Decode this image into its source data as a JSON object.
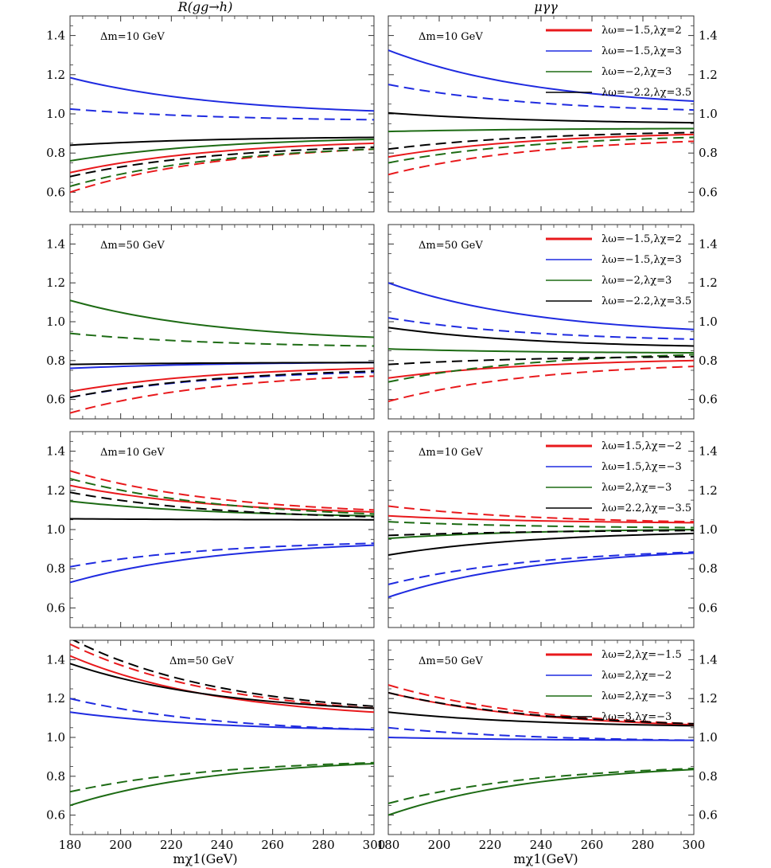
{
  "figure": {
    "column_titles": [
      "R(gg→h)",
      "μγγ"
    ],
    "x_title": "mχ1(GeV)",
    "x_ticks": [
      "180",
      "200",
      "220",
      "240",
      "260",
      "280",
      "300"
    ],
    "y_ticks": [
      "0.6",
      "0.8",
      "1.0",
      "1.2",
      "1.4"
    ],
    "colors": {
      "red": "#e8191c",
      "blue": "#1f2be0",
      "green": "#1d6b14",
      "black": "#000000"
    }
  },
  "chart_data": [
    {
      "type": "line",
      "row": 0,
      "col": 0,
      "quantity": "R(gg→h)",
      "annotation": "Δm=10 GeV",
      "xlim": [
        180,
        300
      ],
      "ylim": [
        0.5,
        1.5
      ],
      "series": [
        {
          "name": "λω=-1.5,λχ=2",
          "color": "red",
          "solid": {
            "x": [
              180,
              300
            ],
            "y": [
              0.7,
              0.85
            ]
          },
          "dashed": {
            "x": [
              180,
              300
            ],
            "y": [
              0.6,
              0.82
            ]
          }
        },
        {
          "name": "λω=-1.5,λχ=3",
          "color": "blue",
          "solid": {
            "x": [
              180,
              300
            ],
            "y": [
              1.185,
              1.015
            ]
          },
          "dashed": {
            "x": [
              180,
              300
            ],
            "y": [
              1.025,
              0.97
            ]
          }
        },
        {
          "name": "λω=-2,λχ=3",
          "color": "green",
          "solid": {
            "x": [
              180,
              300
            ],
            "y": [
              0.76,
              0.87
            ]
          },
          "dashed": {
            "x": [
              180,
              300
            ],
            "y": [
              0.63,
              0.82
            ]
          }
        },
        {
          "name": "λω=-2.2,λχ=3.5",
          "color": "black",
          "solid": {
            "x": [
              180,
              300
            ],
            "y": [
              0.84,
              0.88
            ]
          },
          "dashed": {
            "x": [
              180,
              300
            ],
            "y": [
              0.68,
              0.83
            ]
          }
        }
      ]
    },
    {
      "type": "line",
      "row": 0,
      "col": 1,
      "quantity": "μγγ",
      "annotation": "Δm=10 GeV",
      "xlim": [
        180,
        300
      ],
      "ylim": [
        0.5,
        1.5
      ],
      "legend": [
        "λω=−1.5,λχ=2",
        "λω=−1.5,λχ=3",
        "λω=−2,λχ=3",
        "λω=−2.2,λχ=3.5"
      ],
      "series": [
        {
          "name": "λω=-1.5,λχ=2",
          "color": "red",
          "solid": {
            "x": [
              180,
              300
            ],
            "y": [
              0.78,
              0.895
            ]
          },
          "dashed": {
            "x": [
              180,
              300
            ],
            "y": [
              0.69,
              0.86
            ]
          }
        },
        {
          "name": "λω=-1.5,λχ=3",
          "color": "blue",
          "solid": {
            "x": [
              180,
              300
            ],
            "y": [
              1.325,
              1.065
            ]
          },
          "dashed": {
            "x": [
              180,
              300
            ],
            "y": [
              1.15,
              1.02
            ]
          }
        },
        {
          "name": "λω=-2,λχ=3",
          "color": "green",
          "solid": {
            "x": [
              180,
              300
            ],
            "y": [
              0.91,
              0.925
            ]
          },
          "dashed": {
            "x": [
              180,
              300
            ],
            "y": [
              0.75,
              0.88
            ]
          }
        },
        {
          "name": "λω=-2.2,λχ=3.5",
          "color": "black",
          "solid": {
            "x": [
              180,
              300
            ],
            "y": [
              1.005,
              0.955
            ]
          },
          "dashed": {
            "x": [
              180,
              300
            ],
            "y": [
              0.82,
              0.905
            ]
          }
        }
      ]
    },
    {
      "type": "line",
      "row": 1,
      "col": 0,
      "quantity": "R(gg→h)",
      "annotation": "Δm=50 GeV",
      "xlim": [
        180,
        300
      ],
      "ylim": [
        0.5,
        1.5
      ],
      "series": [
        {
          "name": "λω=-1.5,λχ=2",
          "color": "red",
          "solid": {
            "x": [
              180,
              300
            ],
            "y": [
              0.64,
              0.76
            ]
          },
          "dashed": {
            "x": [
              180,
              300
            ],
            "y": [
              0.53,
              0.72
            ]
          }
        },
        {
          "name": "λω=-1.5,λχ=3",
          "color": "blue",
          "solid": {
            "x": [
              180,
              300
            ],
            "y": [
              0.76,
              0.79
            ]
          },
          "dashed": {
            "x": [
              180,
              300
            ],
            "y": [
              0.61,
              0.74
            ]
          }
        },
        {
          "name": "λω=-2,λχ=3",
          "color": "green",
          "solid": {
            "x": [
              180,
              300
            ],
            "y": [
              1.11,
              0.92
            ]
          },
          "dashed": {
            "x": [
              180,
              300
            ],
            "y": [
              0.94,
              0.875
            ]
          }
        },
        {
          "name": "λω=-2.2,λχ=3.5",
          "color": "black",
          "solid": {
            "x": [
              180,
              300
            ],
            "y": [
              0.78,
              0.79
            ]
          },
          "dashed": {
            "x": [
              180,
              300
            ],
            "y": [
              0.61,
              0.745
            ]
          }
        }
      ]
    },
    {
      "type": "line",
      "row": 1,
      "col": 1,
      "quantity": "μγγ",
      "annotation": "Δm=50 GeV",
      "xlim": [
        180,
        300
      ],
      "ylim": [
        0.5,
        1.5
      ],
      "legend": [
        "λω=−1.5,λχ=2",
        "λω=−1.5,λχ=3",
        "λω=−2,λχ=3",
        "λω=−2.2,λχ=3.5"
      ],
      "series": [
        {
          "name": "λω=-1.5,λχ=2",
          "color": "red",
          "solid": {
            "x": [
              180,
              300
            ],
            "y": [
              0.71,
              0.8
            ]
          },
          "dashed": {
            "x": [
              180,
              300
            ],
            "y": [
              0.59,
              0.77
            ]
          }
        },
        {
          "name": "λω=-1.5,λχ=3",
          "color": "blue",
          "solid": {
            "x": [
              180,
              300
            ],
            "y": [
              1.2,
              0.96
            ]
          },
          "dashed": {
            "x": [
              180,
              300
            ],
            "y": [
              1.02,
              0.91
            ]
          }
        },
        {
          "name": "λω=-2,λχ=3",
          "color": "green",
          "solid": {
            "x": [
              180,
              300
            ],
            "y": [
              0.86,
              0.84
            ]
          },
          "dashed": {
            "x": [
              180,
              300
            ],
            "y": [
              0.69,
              0.83
            ]
          }
        },
        {
          "name": "λω=-2.2,λχ=3.5",
          "color": "black",
          "solid": {
            "x": [
              180,
              300
            ],
            "y": [
              0.97,
              0.875
            ]
          },
          "dashed": {
            "x": [
              180,
              300
            ],
            "y": [
              0.78,
              0.82
            ]
          }
        }
      ]
    },
    {
      "type": "line",
      "row": 2,
      "col": 0,
      "quantity": "R(gg→h)",
      "annotation": "Δm=10 GeV",
      "xlim": [
        180,
        300
      ],
      "ylim": [
        0.5,
        1.5
      ],
      "series": [
        {
          "name": "λω=1.5,λχ=-2",
          "color": "red",
          "solid": {
            "x": [
              180,
              300
            ],
            "y": [
              1.225,
              1.09
            ]
          },
          "dashed": {
            "x": [
              180,
              300
            ],
            "y": [
              1.3,
              1.1
            ]
          }
        },
        {
          "name": "λω=1.5,λχ=-3",
          "color": "blue",
          "solid": {
            "x": [
              180,
              300
            ],
            "y": [
              0.73,
              0.92
            ]
          },
          "dashed": {
            "x": [
              180,
              300
            ],
            "y": [
              0.81,
              0.93
            ]
          }
        },
        {
          "name": "λω=2,λχ=-3",
          "color": "green",
          "solid": {
            "x": [
              180,
              300
            ],
            "y": [
              1.145,
              1.07
            ]
          },
          "dashed": {
            "x": [
              180,
              300
            ],
            "y": [
              1.26,
              1.08
            ]
          }
        },
        {
          "name": "λω=2.2,λχ=-3.5",
          "color": "black",
          "solid": {
            "x": [
              180,
              300
            ],
            "y": [
              1.055,
              1.05
            ]
          },
          "dashed": {
            "x": [
              180,
              300
            ],
            "y": [
              1.19,
              1.065
            ]
          }
        }
      ]
    },
    {
      "type": "line",
      "row": 2,
      "col": 1,
      "quantity": "μγγ",
      "annotation": "Δm=10 GeV",
      "xlim": [
        180,
        300
      ],
      "ylim": [
        0.5,
        1.5
      ],
      "legend": [
        "λω=1.5,λχ=−2",
        "λω=1.5,λχ=−3",
        "λω=2,λχ=−3",
        "λω=2.2,λχ=−3.5"
      ],
      "series": [
        {
          "name": "λω=1.5,λχ=-2",
          "color": "red",
          "solid": {
            "x": [
              180,
              300
            ],
            "y": [
              1.07,
              1.035
            ]
          },
          "dashed": {
            "x": [
              180,
              300
            ],
            "y": [
              1.12,
              1.04
            ]
          }
        },
        {
          "name": "λω=1.5,λχ=-3",
          "color": "blue",
          "solid": {
            "x": [
              180,
              300
            ],
            "y": [
              0.655,
              0.88
            ]
          },
          "dashed": {
            "x": [
              180,
              300
            ],
            "y": [
              0.72,
              0.885
            ]
          }
        },
        {
          "name": "λω=2,λχ=-3",
          "color": "green",
          "solid": {
            "x": [
              180,
              300
            ],
            "y": [
              0.955,
              1.0
            ]
          },
          "dashed": {
            "x": [
              180,
              300
            ],
            "y": [
              1.04,
              1.01
            ]
          }
        },
        {
          "name": "λω=2.2,λχ=-3.5",
          "color": "black",
          "solid": {
            "x": [
              180,
              300
            ],
            "y": [
              0.87,
              0.98
            ]
          },
          "dashed": {
            "x": [
              180,
              300
            ],
            "y": [
              0.97,
              0.995
            ]
          }
        }
      ]
    },
    {
      "type": "line",
      "row": 3,
      "col": 0,
      "quantity": "R(gg→h)",
      "annotation": "Δm=50 GeV",
      "xlim": [
        180,
        300
      ],
      "ylim": [
        0.5,
        1.5
      ],
      "series": [
        {
          "name": "λω=2,λχ=-1.5",
          "color": "red",
          "solid": {
            "x": [
              180,
              300
            ],
            "y": [
              1.42,
              1.13
            ]
          },
          "dashed": {
            "x": [
              180,
              300
            ],
            "y": [
              1.48,
              1.15
            ]
          }
        },
        {
          "name": "λω=2,λχ=-2",
          "color": "blue",
          "solid": {
            "x": [
              180,
              300
            ],
            "y": [
              1.13,
              1.04
            ]
          },
          "dashed": {
            "x": [
              180,
              300
            ],
            "y": [
              1.2,
              1.04
            ]
          }
        },
        {
          "name": "λω=2,λχ=-3",
          "color": "green",
          "solid": {
            "x": [
              180,
              300
            ],
            "y": [
              0.65,
              0.865
            ]
          },
          "dashed": {
            "x": [
              180,
              300
            ],
            "y": [
              0.72,
              0.87
            ]
          }
        },
        {
          "name": "λω=3,λχ=-3",
          "color": "black",
          "solid": {
            "x": [
              180,
              300
            ],
            "y": [
              1.38,
              1.15
            ]
          },
          "dashed": {
            "x": [
              180,
              300
            ],
            "y": [
              1.51,
              1.16
            ]
          }
        }
      ]
    },
    {
      "type": "line",
      "row": 3,
      "col": 1,
      "quantity": "μγγ",
      "annotation": "Δm=50 GeV",
      "xlim": [
        180,
        300
      ],
      "ylim": [
        0.5,
        1.5
      ],
      "legend": [
        "λω=2,λχ=−1.5",
        "λω=2,λχ=−2",
        "λω=2,λχ=−3",
        "λω=3,λχ=−3"
      ],
      "series": [
        {
          "name": "λω=2,λχ=-1.5",
          "color": "red",
          "solid": {
            "x": [
              180,
              300
            ],
            "y": [
              1.23,
              1.065
            ]
          },
          "dashed": {
            "x": [
              180,
              300
            ],
            "y": [
              1.27,
              1.07
            ]
          }
        },
        {
          "name": "λω=2,λχ=-2",
          "color": "blue",
          "solid": {
            "x": [
              180,
              300
            ],
            "y": [
              1.0,
              0.985
            ]
          },
          "dashed": {
            "x": [
              180,
              300
            ],
            "y": [
              1.05,
              0.985
            ]
          }
        },
        {
          "name": "λω=2,λχ=-3",
          "color": "green",
          "solid": {
            "x": [
              180,
              300
            ],
            "y": [
              0.6,
              0.835
            ]
          },
          "dashed": {
            "x": [
              180,
              300
            ],
            "y": [
              0.66,
              0.84
            ]
          }
        },
        {
          "name": "λω=3,λχ=-3",
          "color": "black",
          "solid": {
            "x": [
              180,
              300
            ],
            "y": [
              1.13,
              1.06
            ]
          },
          "dashed": {
            "x": [
              180,
              300
            ],
            "y": [
              1.23,
              1.07
            ]
          }
        }
      ]
    }
  ]
}
